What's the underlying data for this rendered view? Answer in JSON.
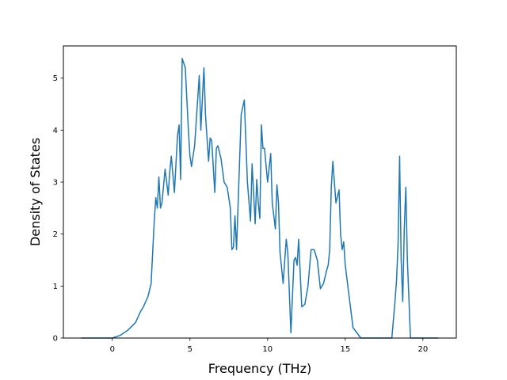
{
  "chart_data": {
    "type": "line",
    "title": "",
    "xlabel": "Frequency (THz)",
    "ylabel": "Density of States",
    "xlim": [
      -3.15,
      22.15
    ],
    "ylim": [
      0,
      5.62
    ],
    "xticks": [
      0,
      5,
      10,
      15,
      20
    ],
    "yticks": [
      0,
      1,
      2,
      3,
      4,
      5
    ],
    "xtick_labels": [
      "0",
      "5",
      "10",
      "15",
      "20"
    ],
    "ytick_labels": [
      "0",
      "1",
      "2",
      "3",
      "4",
      "5"
    ],
    "grid": false,
    "legend": "none",
    "series": [
      {
        "color": "#1f77b4",
        "x": [
          -2,
          -1,
          0,
          0.5,
          1,
          1.5,
          1.8,
          2.0,
          2.3,
          2.5,
          2.7,
          2.8,
          2.9,
          3.0,
          3.1,
          3.2,
          3.4,
          3.6,
          3.7,
          3.8,
          4.0,
          4.2,
          4.3,
          4.4,
          4.5,
          4.7,
          4.9,
          5.0,
          5.1,
          5.3,
          5.5,
          5.6,
          5.7,
          5.9,
          6.0,
          6.2,
          6.3,
          6.4,
          6.6,
          6.7,
          6.8,
          7.0,
          7.2,
          7.4,
          7.5,
          7.6,
          7.7,
          7.8,
          7.9,
          8.0,
          8.3,
          8.5,
          8.7,
          8.9,
          9.0,
          9.2,
          9.3,
          9.4,
          9.5,
          9.6,
          9.7,
          9.8,
          10.0,
          10.2,
          10.3,
          10.5,
          10.6,
          10.7,
          10.8,
          11.0,
          11.2,
          11.3,
          11.5,
          11.7,
          11.8,
          11.9,
          12.0,
          12.2,
          12.4,
          12.6,
          12.8,
          13.0,
          13.2,
          13.4,
          13.6,
          13.8,
          13.9,
          14.0,
          14.1,
          14.2,
          14.4,
          14.6,
          14.7,
          14.8,
          14.9,
          15.0,
          15.5,
          16.0,
          17.0,
          17.8,
          18.0,
          18.2,
          18.3,
          18.4,
          18.5,
          18.6,
          18.7,
          18.8,
          18.9,
          19.0,
          19.2,
          19.4,
          20.0,
          21.0
        ],
        "y": [
          0,
          0,
          0,
          0.05,
          0.15,
          0.3,
          0.5,
          0.6,
          0.8,
          1.05,
          2.25,
          2.7,
          2.5,
          3.1,
          2.5,
          2.6,
          3.25,
          2.75,
          3.2,
          3.5,
          2.8,
          3.9,
          4.1,
          3.05,
          5.38,
          5.2,
          4.0,
          3.5,
          3.3,
          3.7,
          4.6,
          5.05,
          4.0,
          5.2,
          4.3,
          3.4,
          3.85,
          3.8,
          2.8,
          3.65,
          3.7,
          3.45,
          3.0,
          2.9,
          2.7,
          2.5,
          1.7,
          1.75,
          2.35,
          1.7,
          4.3,
          4.58,
          3.0,
          2.25,
          3.35,
          2.2,
          3.05,
          2.6,
          2.3,
          4.1,
          3.65,
          3.65,
          3.0,
          3.55,
          2.6,
          2.1,
          2.95,
          2.6,
          1.65,
          1.05,
          1.9,
          1.65,
          0.1,
          1.5,
          1.55,
          1.4,
          1.9,
          0.6,
          0.65,
          1.0,
          1.7,
          1.7,
          1.5,
          0.95,
          1.05,
          1.3,
          1.4,
          1.7,
          2.9,
          3.4,
          2.6,
          2.85,
          2.0,
          1.7,
          1.85,
          1.4,
          0.2,
          0,
          0,
          0,
          0,
          0.7,
          1.1,
          1.8,
          3.5,
          1.5,
          0.7,
          2.1,
          2.9,
          1.5,
          0,
          0,
          0,
          0
        ]
      }
    ]
  }
}
